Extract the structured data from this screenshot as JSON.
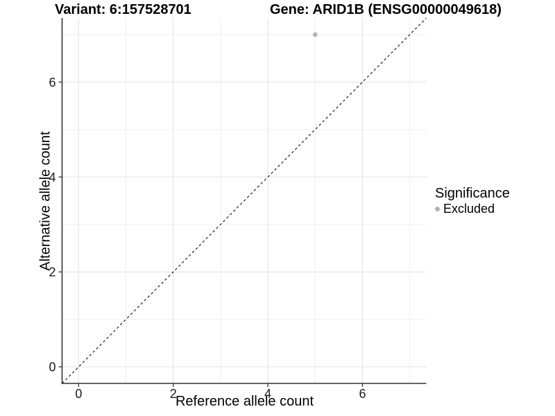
{
  "chart_data": {
    "type": "scatter",
    "titles": {
      "left": "Variant: 6:157528701",
      "right": "Gene: ARID1B (ENSG00000049618)"
    },
    "xlabel": "Reference allele count",
    "ylabel": "Alternative allele count",
    "xlim": [
      -0.35,
      7.35
    ],
    "ylim": [
      -0.35,
      7.35
    ],
    "xticks": [
      0,
      2,
      4,
      6
    ],
    "yticks": [
      0,
      2,
      4,
      6
    ],
    "xminor": [
      1,
      3,
      5,
      7
    ],
    "yminor": [
      1,
      3,
      5,
      7
    ],
    "grid": "major+minor",
    "identity_line": {
      "slope": 1,
      "intercept": 0,
      "style": "dashed",
      "color": "#1a1a1a"
    },
    "points": [
      {
        "x": 5,
        "y": 7,
        "significance": "Excluded",
        "color": "#b5b5b5"
      }
    ],
    "legend": {
      "title": "Significance",
      "position": "right",
      "entries": [
        {
          "label": "Excluded",
          "color": "#b5b5b5"
        }
      ]
    },
    "colors": {
      "background": "#ffffff",
      "grid_major": "#e4e4e4",
      "grid_minor": "#efefef",
      "axis_line": "#333333",
      "tick_mark": "#333333",
      "tick_text": "#1a1a1a",
      "point": "#b5b5b5"
    }
  }
}
